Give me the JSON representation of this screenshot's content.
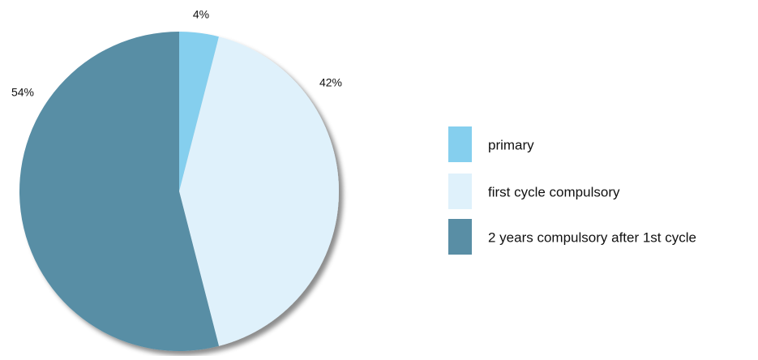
{
  "chart_data": {
    "type": "pie",
    "categories": [
      "primary",
      "first cycle compulsory",
      "2 years compulsory after 1st cycle"
    ],
    "values": [
      4,
      42,
      54
    ],
    "value_labels": [
      "4%",
      "42%",
      "54%"
    ],
    "colors": [
      "#85cfee",
      "#dff1fb",
      "#598ea5"
    ],
    "legend": "right"
  }
}
